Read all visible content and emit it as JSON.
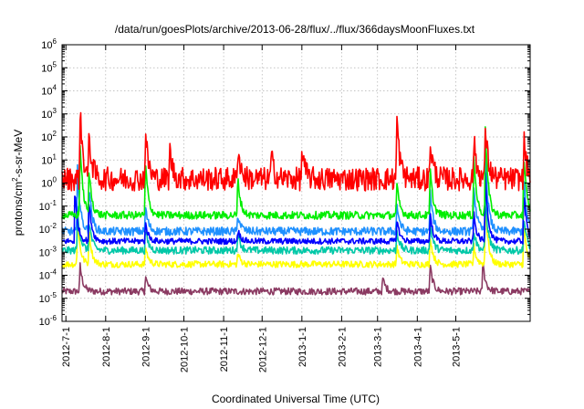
{
  "chart_data": {
    "type": "line",
    "title": "/data/run/goesPlots/archive/2013-06-28/flux/../flux/366daysMoonFluxes.txt",
    "xlabel": "Coordinated Universal Time (UTC)",
    "ylabel_parts": [
      "protons/cm",
      "2",
      "-s-sr-MeV"
    ],
    "yscale": "log",
    "ylim": [
      1e-06,
      1000000.0
    ],
    "xlim": [
      "2012-06-28",
      "2013-06-28"
    ],
    "grid": true,
    "y_ticks": [
      {
        "exp": "-6"
      },
      {
        "exp": "-5"
      },
      {
        "exp": "-4"
      },
      {
        "exp": "-3"
      },
      {
        "exp": "-2"
      },
      {
        "exp": "-1"
      },
      {
        "exp": "0"
      },
      {
        "exp": "1"
      },
      {
        "exp": "2"
      },
      {
        "exp": "3"
      },
      {
        "exp": "4"
      },
      {
        "exp": "5"
      },
      {
        "exp": "6"
      }
    ],
    "x_ticks": [
      {
        "label": "2012-7-1",
        "date": "2012-07-01"
      },
      {
        "label": "2012-8-1",
        "date": "2012-08-01"
      },
      {
        "label": "2012-9-1",
        "date": "2012-09-01"
      },
      {
        "label": "2012-10-1",
        "date": "2012-10-01"
      },
      {
        "label": "2012-11-1",
        "date": "2012-11-01"
      },
      {
        "label": "2012-12-1",
        "date": "2012-12-01"
      },
      {
        "label": "2013-1-1",
        "date": "2013-01-01"
      },
      {
        "label": "2013-2-1",
        "date": "2013-02-01"
      },
      {
        "label": "2013-3-1",
        "date": "2013-03-01"
      },
      {
        "label": "2013-4-1",
        "date": "2013-04-01"
      },
      {
        "label": "2013-5-1",
        "date": "2013-05-01"
      }
    ],
    "series": [
      {
        "color": "#8b3a62",
        "baseline": 2e-05,
        "noise": 0.15,
        "events": [
          [
            "2012-07-12",
            0.0003
          ],
          [
            "2012-09-01",
            0.0001
          ],
          [
            "2013-03-05",
            8e-05
          ],
          [
            "2013-04-11",
            0.0003
          ],
          [
            "2013-05-22",
            0.0004
          ]
        ]
      },
      {
        "color": "#ffff00",
        "baseline": 0.0003,
        "noise": 0.14,
        "events": [
          [
            "2012-07-10",
            0.03
          ],
          [
            "2012-07-19",
            0.01
          ],
          [
            "2012-09-01",
            0.002
          ],
          [
            "2012-11-12",
            0.001
          ],
          [
            "2013-03-16",
            0.002
          ],
          [
            "2013-04-11",
            0.006
          ],
          [
            "2013-05-15",
            0.002
          ],
          [
            "2013-05-24",
            0.2
          ],
          [
            "2013-06-23",
            0.02
          ]
        ]
      },
      {
        "color": "#00c8a8",
        "baseline": 0.0012,
        "noise": 0.16,
        "events": [
          [
            "2012-07-10",
            0.08
          ],
          [
            "2012-07-19",
            0.03
          ],
          [
            "2012-09-01",
            0.01
          ],
          [
            "2012-11-12",
            0.008
          ],
          [
            "2013-03-16",
            0.01
          ],
          [
            "2013-04-11",
            0.02
          ],
          [
            "2013-05-15",
            0.01
          ],
          [
            "2013-05-24",
            0.3
          ],
          [
            "2013-06-23",
            0.05
          ]
        ]
      },
      {
        "color": "#1e90ff",
        "baseline": 0.008,
        "noise": 0.18,
        "events": [
          [
            "2012-07-10",
            5.0
          ],
          [
            "2012-07-19",
            1.0
          ],
          [
            "2012-09-01",
            0.1
          ],
          [
            "2012-11-12",
            0.05
          ],
          [
            "2013-03-16",
            0.15
          ],
          [
            "2013-04-11",
            0.5
          ],
          [
            "2013-05-15",
            1.0
          ],
          [
            "2013-05-24",
            30.0
          ],
          [
            "2013-06-23",
            2.0
          ]
        ]
      },
      {
        "color": "#0000ff",
        "baseline": 0.003,
        "noise": 0.13,
        "events": [
          [
            "2012-07-08",
            0.5
          ],
          [
            "2012-07-19",
            0.2
          ],
          [
            "2012-09-01",
            0.02
          ],
          [
            "2012-11-12",
            0.01
          ],
          [
            "2013-03-16",
            0.03
          ],
          [
            "2013-04-11",
            0.05
          ],
          [
            "2013-05-15",
            0.05
          ],
          [
            "2013-05-24",
            3.0
          ],
          [
            "2013-06-23",
            0.5
          ]
        ]
      },
      {
        "color": "#00ee00",
        "baseline": 0.04,
        "noise": 0.17,
        "events": [
          [
            "2012-07-12",
            80.0
          ],
          [
            "2012-07-19",
            5.0
          ],
          [
            "2012-09-01",
            10.0
          ],
          [
            "2012-11-12",
            2.0
          ],
          [
            "2013-03-16",
            1.0
          ],
          [
            "2013-04-11",
            5.0
          ],
          [
            "2013-05-15",
            20.0
          ],
          [
            "2013-05-24",
            300.0
          ],
          [
            "2013-06-23",
            20.0
          ]
        ]
      },
      {
        "color": "#ff0000",
        "baseline": 1.5,
        "noise": 0.32,
        "events": [
          [
            "2012-07-12",
            2200.0
          ],
          [
            "2012-07-19",
            200.0
          ],
          [
            "2012-09-01",
            200.0
          ],
          [
            "2012-09-20",
            30.0
          ],
          [
            "2012-11-12",
            50.0
          ],
          [
            "2012-12-08",
            20.0
          ],
          [
            "2013-01-01",
            30.0
          ],
          [
            "2013-03-16",
            1000.0
          ],
          [
            "2013-04-11",
            100.0
          ],
          [
            "2013-05-15",
            100.0
          ],
          [
            "2013-05-24",
            400.0
          ],
          [
            "2013-06-23",
            100.0
          ]
        ]
      }
    ]
  }
}
